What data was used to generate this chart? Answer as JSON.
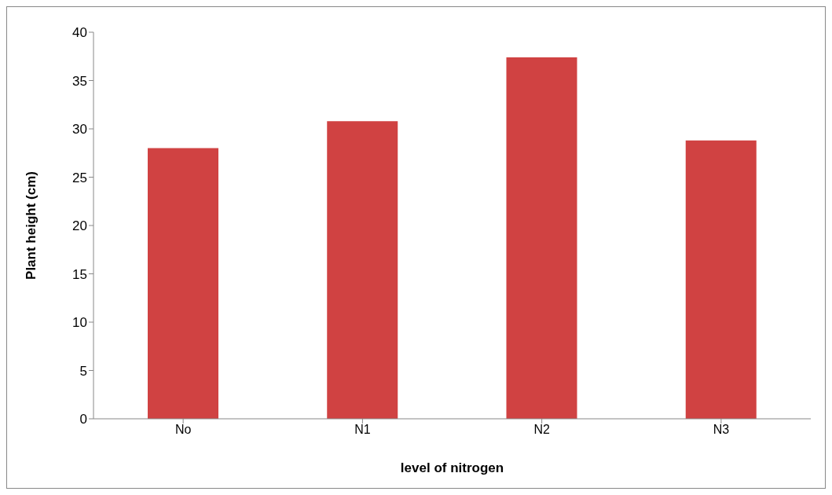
{
  "chart_data": {
    "type": "bar",
    "xlabel": "level of nitrogen",
    "ylabel": "Plant height (cm)",
    "categories": [
      "No",
      "N1",
      "N2",
      "N3"
    ],
    "values": [
      28,
      30.8,
      37.4,
      28.8
    ],
    "color": "#d04242",
    "ylim": [
      0,
      40
    ],
    "yticks": [
      0,
      5,
      10,
      15,
      20,
      25,
      30,
      35,
      40
    ],
    "grid": false,
    "legend": false
  }
}
